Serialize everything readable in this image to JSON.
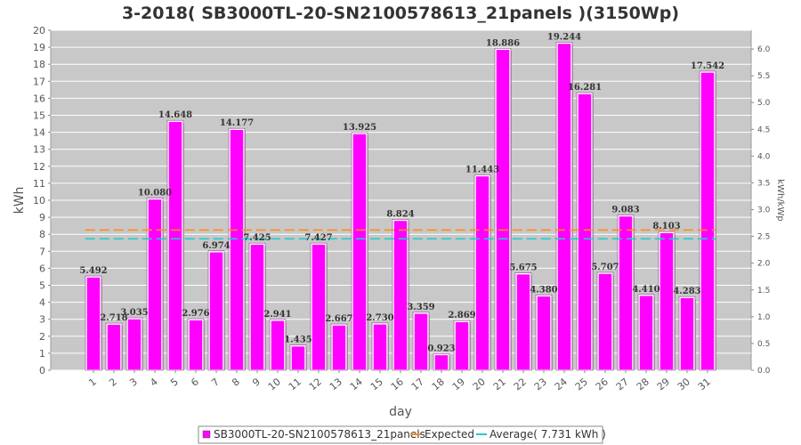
{
  "chart_data": {
    "type": "bar",
    "title": "3-2018( SB3000TL-20-SN2100578613_21panels )(3150Wp)",
    "xlabel": "day",
    "ylabel": "kWh",
    "ylabel_right": "kWh/kWp",
    "ylim": [
      0,
      20
    ],
    "ylim_right": [
      0.0,
      6.35
    ],
    "yticks": [
      0,
      1,
      2,
      3,
      4,
      5,
      6,
      7,
      8,
      9,
      10,
      11,
      12,
      13,
      14,
      15,
      16,
      17,
      18,
      19,
      20
    ],
    "yticks_right": [
      "0.0",
      "0.5",
      "1.0",
      "1.5",
      "2.0",
      "2.5",
      "3.0",
      "3.5",
      "4.0",
      "4.5",
      "5.0",
      "5.5",
      "6.0"
    ],
    "grid": true,
    "legend_position": "bottom",
    "categories": [
      "1",
      "2",
      "3",
      "4",
      "5",
      "6",
      "7",
      "8",
      "9",
      "10",
      "11",
      "12",
      "13",
      "14",
      "15",
      "16",
      "17",
      "18",
      "19",
      "20",
      "21",
      "22",
      "23",
      "24",
      "25",
      "26",
      "27",
      "28",
      "29",
      "30",
      "31"
    ],
    "series": [
      {
        "name": "SB3000TL-20-SN2100578613_21panels",
        "color": "#ff00ff",
        "values": [
          5.492,
          2.718,
          3.035,
          10.08,
          14.648,
          2.976,
          6.974,
          14.177,
          7.425,
          2.941,
          1.435,
          7.427,
          2.667,
          13.925,
          2.73,
          8.824,
          3.359,
          0.923,
          2.869,
          11.443,
          18.886,
          5.675,
          4.38,
          19.244,
          16.281,
          5.707,
          9.083,
          4.41,
          8.103,
          4.283,
          17.542
        ],
        "labels": [
          "5.492",
          "2.718",
          "3.035",
          "10.080",
          "14.648",
          "2.976",
          "6.974",
          "14.177",
          "7.425",
          "2.941",
          "1.435",
          "7.427",
          "2.667",
          "13.925",
          "2.730",
          "8.824",
          "3.359",
          "0.923",
          "2.869",
          "11.443",
          "18.886",
          "5.675",
          "4.380",
          "19.244",
          "16.281",
          "5.707",
          "9.083",
          "4.410",
          "8.103",
          "4.283",
          "17.542"
        ]
      }
    ],
    "lines": [
      {
        "name": "Expected",
        "color": "#ff8c1a",
        "value": 8.25
      },
      {
        "name": "Average( 7.731 kWh )",
        "color": "#22cccc",
        "value": 7.731
      }
    ]
  }
}
